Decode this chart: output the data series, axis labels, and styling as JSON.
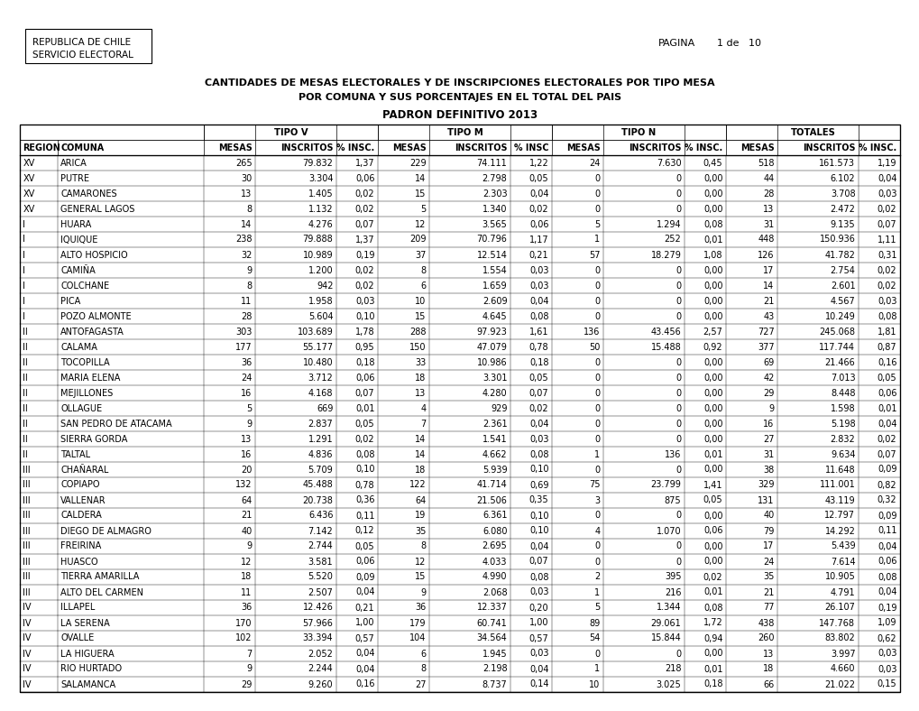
{
  "title_line1": "CANTIDADES DE MESAS ELECTORALES Y DE INSCRIPCIONES ELECTORALES POR TIPO MESA",
  "title_line2": "POR COMUNA Y SUS PORCENTAJES EN EL TOTAL DEL PAIS",
  "title_line3": "PADRON DEFINITIVO 2013",
  "header_left_line1": "REPUBLICA DE CHILE",
  "header_left_line2": "SERVICIO ELECTORAL",
  "pagina_text": "PAGINA",
  "pagina_num": "1 de   10",
  "rows": [
    [
      "XV",
      "ARICA",
      "265",
      "79.832",
      "1,37",
      "229",
      "74.111",
      "1,22",
      "24",
      "7.630",
      "0,45",
      "518",
      "161.573",
      "1,19"
    ],
    [
      "XV",
      "PUTRE",
      "30",
      "3.304",
      "0,06",
      "14",
      "2.798",
      "0,05",
      "0",
      "0",
      "0,00",
      "44",
      "6.102",
      "0,04"
    ],
    [
      "XV",
      "CAMARONES",
      "13",
      "1.405",
      "0,02",
      "15",
      "2.303",
      "0,04",
      "0",
      "0",
      "0,00",
      "28",
      "3.708",
      "0,03"
    ],
    [
      "XV",
      "GENERAL LAGOS",
      "8",
      "1.132",
      "0,02",
      "5",
      "1.340",
      "0,02",
      "0",
      "0",
      "0,00",
      "13",
      "2.472",
      "0,02"
    ],
    [
      "I",
      "HUARA",
      "14",
      "4.276",
      "0,07",
      "12",
      "3.565",
      "0,06",
      "5",
      "1.294",
      "0,08",
      "31",
      "9.135",
      "0,07"
    ],
    [
      "I",
      "IQUIQUE",
      "238",
      "79.888",
      "1,37",
      "209",
      "70.796",
      "1,17",
      "1",
      "252",
      "0,01",
      "448",
      "150.936",
      "1,11"
    ],
    [
      "I",
      "ALTO HOSPICIO",
      "32",
      "10.989",
      "0,19",
      "37",
      "12.514",
      "0,21",
      "57",
      "18.279",
      "1,08",
      "126",
      "41.782",
      "0,31"
    ],
    [
      "I",
      "CAMIÑA",
      "9",
      "1.200",
      "0,02",
      "8",
      "1.554",
      "0,03",
      "0",
      "0",
      "0,00",
      "17",
      "2.754",
      "0,02"
    ],
    [
      "I",
      "COLCHANE",
      "8",
      "942",
      "0,02",
      "6",
      "1.659",
      "0,03",
      "0",
      "0",
      "0,00",
      "14",
      "2.601",
      "0,02"
    ],
    [
      "I",
      "PICA",
      "11",
      "1.958",
      "0,03",
      "10",
      "2.609",
      "0,04",
      "0",
      "0",
      "0,00",
      "21",
      "4.567",
      "0,03"
    ],
    [
      "I",
      "POZO ALMONTE",
      "28",
      "5.604",
      "0,10",
      "15",
      "4.645",
      "0,08",
      "0",
      "0",
      "0,00",
      "43",
      "10.249",
      "0,08"
    ],
    [
      "II",
      "ANTOFAGASTA",
      "303",
      "103.689",
      "1,78",
      "288",
      "97.923",
      "1,61",
      "136",
      "43.456",
      "2,57",
      "727",
      "245.068",
      "1,81"
    ],
    [
      "II",
      "CALAMA",
      "177",
      "55.177",
      "0,95",
      "150",
      "47.079",
      "0,78",
      "50",
      "15.488",
      "0,92",
      "377",
      "117.744",
      "0,87"
    ],
    [
      "II",
      "TOCOPILLA",
      "36",
      "10.480",
      "0,18",
      "33",
      "10.986",
      "0,18",
      "0",
      "0",
      "0,00",
      "69",
      "21.466",
      "0,16"
    ],
    [
      "II",
      "MARIA ELENA",
      "24",
      "3.712",
      "0,06",
      "18",
      "3.301",
      "0,05",
      "0",
      "0",
      "0,00",
      "42",
      "7.013",
      "0,05"
    ],
    [
      "II",
      "MEJILLONES",
      "16",
      "4.168",
      "0,07",
      "13",
      "4.280",
      "0,07",
      "0",
      "0",
      "0,00",
      "29",
      "8.448",
      "0,06"
    ],
    [
      "II",
      "OLLAGUE",
      "5",
      "669",
      "0,01",
      "4",
      "929",
      "0,02",
      "0",
      "0",
      "0,00",
      "9",
      "1.598",
      "0,01"
    ],
    [
      "II",
      "SAN PEDRO DE ATACAMA",
      "9",
      "2.837",
      "0,05",
      "7",
      "2.361",
      "0,04",
      "0",
      "0",
      "0,00",
      "16",
      "5.198",
      "0,04"
    ],
    [
      "II",
      "SIERRA GORDA",
      "13",
      "1.291",
      "0,02",
      "14",
      "1.541",
      "0,03",
      "0",
      "0",
      "0,00",
      "27",
      "2.832",
      "0,02"
    ],
    [
      "II",
      "TALTAL",
      "16",
      "4.836",
      "0,08",
      "14",
      "4.662",
      "0,08",
      "1",
      "136",
      "0,01",
      "31",
      "9.634",
      "0,07"
    ],
    [
      "III",
      "CHAÑARAL",
      "20",
      "5.709",
      "0,10",
      "18",
      "5.939",
      "0,10",
      "0",
      "0",
      "0,00",
      "38",
      "11.648",
      "0,09"
    ],
    [
      "III",
      "COPIAPO",
      "132",
      "45.488",
      "0,78",
      "122",
      "41.714",
      "0,69",
      "75",
      "23.799",
      "1,41",
      "329",
      "111.001",
      "0,82"
    ],
    [
      "III",
      "VALLENAR",
      "64",
      "20.738",
      "0,36",
      "64",
      "21.506",
      "0,35",
      "3",
      "875",
      "0,05",
      "131",
      "43.119",
      "0,32"
    ],
    [
      "III",
      "CALDERA",
      "21",
      "6.436",
      "0,11",
      "19",
      "6.361",
      "0,10",
      "0",
      "0",
      "0,00",
      "40",
      "12.797",
      "0,09"
    ],
    [
      "III",
      "DIEGO DE ALMAGRO",
      "40",
      "7.142",
      "0,12",
      "35",
      "6.080",
      "0,10",
      "4",
      "1.070",
      "0,06",
      "79",
      "14.292",
      "0,11"
    ],
    [
      "III",
      "FREIRINA",
      "9",
      "2.744",
      "0,05",
      "8",
      "2.695",
      "0,04",
      "0",
      "0",
      "0,00",
      "17",
      "5.439",
      "0,04"
    ],
    [
      "III",
      "HUASCO",
      "12",
      "3.581",
      "0,06",
      "12",
      "4.033",
      "0,07",
      "0",
      "0",
      "0,00",
      "24",
      "7.614",
      "0,06"
    ],
    [
      "III",
      "TIERRA AMARILLA",
      "18",
      "5.520",
      "0,09",
      "15",
      "4.990",
      "0,08",
      "2",
      "395",
      "0,02",
      "35",
      "10.905",
      "0,08"
    ],
    [
      "III",
      "ALTO DEL CARMEN",
      "11",
      "2.507",
      "0,04",
      "9",
      "2.068",
      "0,03",
      "1",
      "216",
      "0,01",
      "21",
      "4.791",
      "0,04"
    ],
    [
      "IV",
      "ILLAPEL",
      "36",
      "12.426",
      "0,21",
      "36",
      "12.337",
      "0,20",
      "5",
      "1.344",
      "0,08",
      "77",
      "26.107",
      "0,19"
    ],
    [
      "IV",
      "LA SERENA",
      "170",
      "57.966",
      "1,00",
      "179",
      "60.741",
      "1,00",
      "89",
      "29.061",
      "1,72",
      "438",
      "147.768",
      "1,09"
    ],
    [
      "IV",
      "OVALLE",
      "102",
      "33.394",
      "0,57",
      "104",
      "34.564",
      "0,57",
      "54",
      "15.844",
      "0,94",
      "260",
      "83.802",
      "0,62"
    ],
    [
      "IV",
      "LA HIGUERA",
      "7",
      "2.052",
      "0,04",
      "6",
      "1.945",
      "0,03",
      "0",
      "0",
      "0,00",
      "13",
      "3.997",
      "0,03"
    ],
    [
      "IV",
      "RIO HURTADO",
      "9",
      "2.244",
      "0,04",
      "8",
      "2.198",
      "0,04",
      "1",
      "218",
      "0,01",
      "18",
      "4.660",
      "0,03"
    ],
    [
      "IV",
      "SALAMANCA",
      "29",
      "9.260",
      "0,16",
      "27",
      "8.737",
      "0,14",
      "10",
      "3.025",
      "0,18",
      "66",
      "21.022",
      "0,15"
    ]
  ],
  "font_size": 7.0,
  "header_font_size": 7.2,
  "title_font_size": 8.0,
  "title3_font_size": 8.5
}
